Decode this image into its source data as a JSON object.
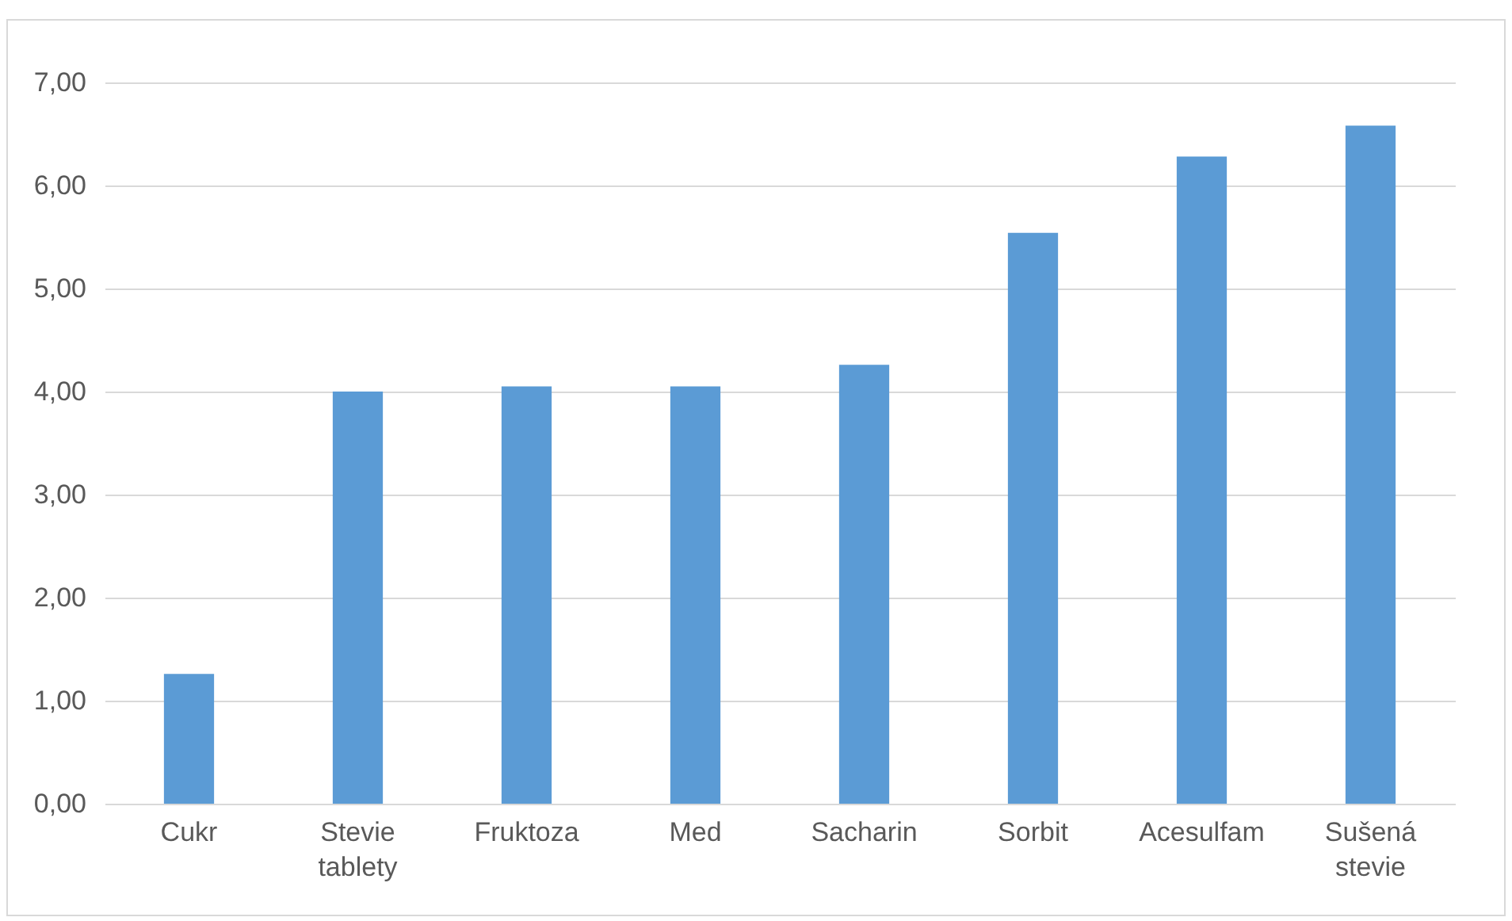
{
  "chart_data": {
    "type": "bar",
    "categories": [
      "Cukr",
      "Stevie tablety",
      "Fruktoza",
      "Med",
      "Sacharin",
      "Sorbit",
      "Acesulfam",
      "Sušená stevie"
    ],
    "values": [
      1.26,
      4.0,
      4.05,
      4.05,
      4.26,
      5.54,
      6.28,
      6.58
    ],
    "color": "#5b9bd5",
    "ylim": [
      0,
      7
    ],
    "yticks": [
      {
        "value": 0,
        "label": "0,00"
      },
      {
        "value": 1,
        "label": "1,00"
      },
      {
        "value": 2,
        "label": "2,00"
      },
      {
        "value": 3,
        "label": "3,00"
      },
      {
        "value": 4,
        "label": "4,00"
      },
      {
        "value": 5,
        "label": "5,00"
      },
      {
        "value": 6,
        "label": "6,00"
      },
      {
        "value": 7,
        "label": "7,00"
      }
    ],
    "grid": "y"
  }
}
